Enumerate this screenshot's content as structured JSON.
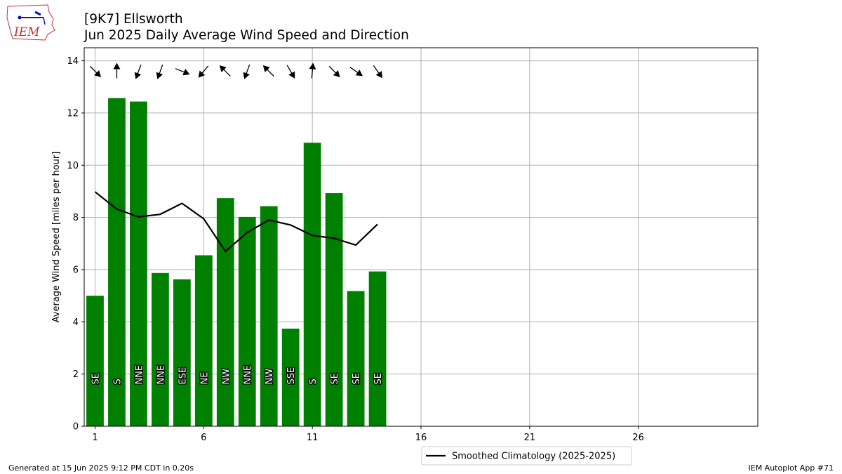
{
  "header": {
    "title_line1": "[9K7] Ellsworth",
    "title_line2": "Jun 2025 Daily Average Wind Speed and Direction"
  },
  "logo": {
    "text": "IEM"
  },
  "footer": {
    "left": "Generated at 15 Jun 2025 9:12 PM CDT in 0.20s",
    "right": "IEM Autoplot App #71"
  },
  "colors": {
    "bar": "#008000",
    "line": "#000000",
    "grid": "#b0b0b0"
  },
  "chart_data": {
    "type": "bar",
    "ylabel": "Average Wind Speed [miles per hour]",
    "xlabel": "",
    "xlim": [
      0.5,
      31.5
    ],
    "ylim": [
      0,
      14.5
    ],
    "xticks": [
      1,
      6,
      11,
      16,
      21,
      26
    ],
    "yticks": [
      0,
      2,
      4,
      6,
      8,
      10,
      12,
      14
    ],
    "grid": true,
    "legend_position": "below-center",
    "series": [
      {
        "type": "bar",
        "days": [
          1,
          2,
          3,
          4,
          5,
          6,
          7,
          8,
          9,
          10,
          11,
          12,
          13,
          14
        ],
        "values": [
          5.0,
          12.57,
          12.44,
          5.87,
          5.63,
          6.55,
          8.74,
          8.02,
          8.43,
          3.74,
          10.86,
          8.93,
          5.18,
          5.93
        ],
        "directions": [
          "SE",
          "S",
          "NNE",
          "NNE",
          "ESE",
          "NE",
          "NW",
          "NNE",
          "NW",
          "SSE",
          "S",
          "SE",
          "SE",
          "SE"
        ],
        "arrow_angles_deg": [
          135,
          0,
          200,
          200,
          112,
          220,
          315,
          200,
          315,
          150,
          5,
          135,
          125,
          145
        ]
      },
      {
        "name": "Smoothed Climatology (2025-2025)",
        "type": "line",
        "days": [
          1,
          2,
          3,
          4,
          5,
          6,
          7,
          8,
          9,
          10,
          11,
          12,
          13,
          14
        ],
        "values": [
          8.98,
          8.32,
          8.02,
          8.12,
          8.54,
          7.95,
          6.7,
          7.42,
          7.9,
          7.71,
          7.31,
          7.2,
          6.94,
          7.74
        ]
      }
    ]
  }
}
